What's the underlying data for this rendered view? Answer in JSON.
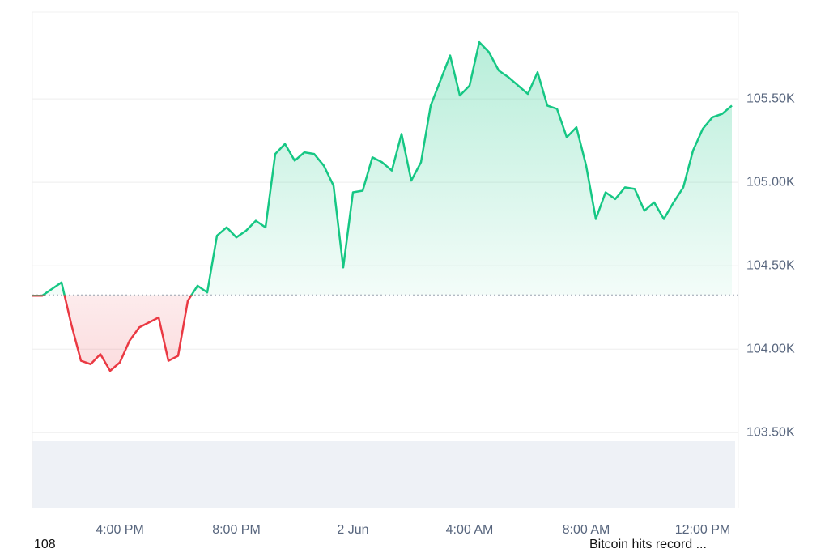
{
  "chart_data": {
    "type": "line",
    "categories": [
      null,
      null,
      null,
      null,
      null,
      null,
      null,
      null,
      null,
      "4:00 PM",
      null,
      null,
      null,
      null,
      null,
      null,
      null,
      null,
      null,
      null,
      null,
      "8:00 PM",
      null,
      null,
      null,
      null,
      null,
      null,
      null,
      null,
      null,
      null,
      null,
      "2 Jun",
      null,
      null,
      null,
      null,
      null,
      null,
      null,
      null,
      null,
      null,
      null,
      "4:00 AM",
      null,
      null,
      null,
      null,
      null,
      null,
      null,
      null,
      null,
      null,
      null,
      "8:00 AM",
      null,
      null,
      null,
      null,
      null,
      null,
      null,
      null,
      null,
      null,
      null,
      "12:00 PM",
      null,
      null,
      null
    ],
    "values": [
      104320,
      104320,
      104360,
      104400,
      104150,
      103930,
      103910,
      103970,
      103870,
      103920,
      104050,
      104130,
      104160,
      104190,
      103930,
      103960,
      104290,
      104380,
      104340,
      104680,
      104730,
      104670,
      104710,
      104770,
      104730,
      105170,
      105230,
      105130,
      105180,
      105170,
      105100,
      104980,
      104490,
      104940,
      104950,
      105150,
      105120,
      105070,
      105290,
      105010,
      105120,
      105460,
      105610,
      105760,
      105520,
      105580,
      105840,
      105780,
      105670,
      105630,
      105580,
      105530,
      105660,
      105460,
      105440,
      105270,
      105330,
      105100,
      104780,
      104940,
      104900,
      104970,
      104960,
      104830,
      104880,
      104780,
      104880,
      104970,
      105190,
      105320,
      105390,
      105410,
      105460
    ],
    "baseline": 104325,
    "color_up": "#16c784",
    "color_down": "#ea3943",
    "ylim": [
      103045,
      106020
    ],
    "yticks": [
      {
        "value": 103500,
        "label": "103.50K"
      },
      {
        "value": 104000,
        "label": "104.00K"
      },
      {
        "value": 104500,
        "label": "104.50K"
      },
      {
        "value": 105000,
        "label": "105.00K"
      },
      {
        "value": 105500,
        "label": "105.50K"
      }
    ],
    "grid": true,
    "annotations": [
      "108",
      "Bitcoin hits record ..."
    ]
  }
}
